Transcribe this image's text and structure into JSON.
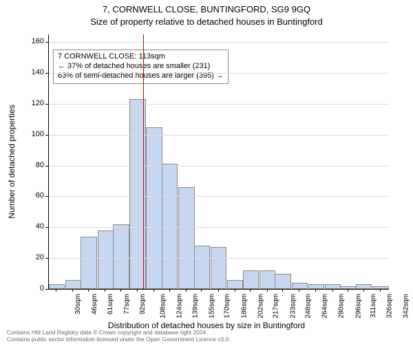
{
  "title_line1": "7, CORNWELL CLOSE, BUNTINGFORD, SG9 9GQ",
  "title_line2": "Size of property relative to detached houses in Buntingford",
  "ylabel": "Number of detached properties",
  "xlabel": "Distribution of detached houses by size in Buntingford",
  "footer_line1": "Contains HM Land Registry data © Crown copyright and database right 2024.",
  "footer_line2": "Contains public sector information licensed under the Open Government Licence v3.0.",
  "annotation": {
    "line1": "7 CORNWELL CLOSE: 113sqm",
    "line2": "← 37% of detached houses are smaller (231)",
    "line3": "63% of semi-detached houses are larger (395) →"
  },
  "ref_line": {
    "value_sqm": 113,
    "color": "#cc0000"
  },
  "chart": {
    "type": "histogram",
    "bar_fill": "#c7d7ef",
    "bar_stroke": "#888888",
    "grid_color": "#dddddd",
    "background_color": "#ffffff",
    "xlim_sqm": [
      22.5,
      350
    ],
    "ylim": [
      0,
      165
    ],
    "ytick_step": 20,
    "yticks": [
      0,
      20,
      40,
      60,
      80,
      100,
      120,
      140,
      160
    ],
    "bar_width_sqm": 15.5,
    "categories_sqm": [
      30,
      46,
      61,
      77,
      92,
      108,
      124,
      139,
      155,
      170,
      186,
      202,
      217,
      233,
      248,
      264,
      280,
      296,
      311,
      326,
      342
    ],
    "xtick_labels": [
      "30sqm",
      "46sqm",
      "61sqm",
      "77sqm",
      "92sqm",
      "108sqm",
      "124sqm",
      "139sqm",
      "155sqm",
      "170sqm",
      "186sqm",
      "202sqm",
      "217sqm",
      "233sqm",
      "248sqm",
      "264sqm",
      "280sqm",
      "296sqm",
      "311sqm",
      "326sqm",
      "342sqm"
    ],
    "values": [
      3,
      6,
      34,
      38,
      42,
      123,
      105,
      81,
      66,
      28,
      27,
      6,
      12,
      12,
      10,
      4,
      3,
      3,
      2,
      3,
      2
    ]
  },
  "fonts": {
    "title_fontsize": 13,
    "axis_label_fontsize": 12,
    "tick_fontsize": 11,
    "xtick_fontsize": 10,
    "annotation_fontsize": 11,
    "footer_fontsize": 8.5
  }
}
